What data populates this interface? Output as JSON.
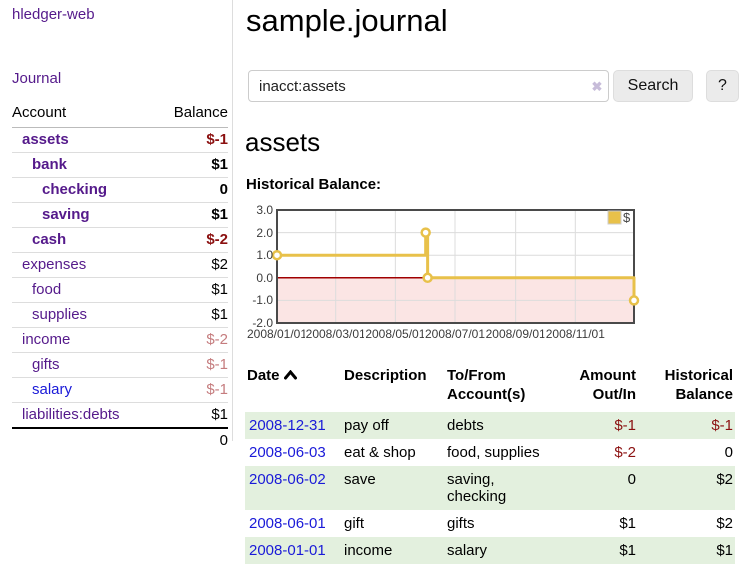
{
  "colors": {
    "link-purple": "#551a8b",
    "link-blue": "#1a1ad8",
    "neg-strong": "#8b1010",
    "neg-soft": "#c57c7e",
    "row-shade": "#e3f0de",
    "chart-line": "#e8c14a",
    "chart-negative-fill": "#fbe5e4",
    "chart-zero-line": "#a00000",
    "chart-grid": "#dcdcdc",
    "chart-border": "#4a4a4a"
  },
  "sidebar": {
    "app_title": "hledger-web",
    "journal_label": "Journal",
    "accounts": {
      "headers": {
        "account": "Account",
        "balance": "Balance"
      },
      "rows": [
        {
          "name": "assets",
          "indent": 1,
          "bold": true,
          "link": "visited",
          "balance": "$-1",
          "tone": "neg"
        },
        {
          "name": "bank",
          "indent": 2,
          "bold": true,
          "link": "visited",
          "balance": "$1",
          "tone": ""
        },
        {
          "name": "checking",
          "indent": 3,
          "bold": true,
          "link": "visited",
          "balance": "0",
          "tone": ""
        },
        {
          "name": "saving",
          "indent": 3,
          "bold": true,
          "link": "visited",
          "balance": "$1",
          "tone": ""
        },
        {
          "name": "cash",
          "indent": 2,
          "bold": true,
          "link": "visited",
          "balance": "$-2",
          "tone": "neg"
        },
        {
          "name": "expenses",
          "indent": 1,
          "bold": false,
          "link": "visited",
          "balance": "$2",
          "tone": ""
        },
        {
          "name": "food",
          "indent": 2,
          "bold": false,
          "link": "visited",
          "balance": "$1",
          "tone": ""
        },
        {
          "name": "supplies",
          "indent": 2,
          "bold": false,
          "link": "visited",
          "balance": "$1",
          "tone": ""
        },
        {
          "name": "income",
          "indent": 1,
          "bold": false,
          "link": "visited",
          "balance": "$-2",
          "tone": "negsoft"
        },
        {
          "name": "gifts",
          "indent": 2,
          "bold": false,
          "link": "visited",
          "balance": "$-1",
          "tone": "negsoft"
        },
        {
          "name": "salary",
          "indent": 2,
          "bold": false,
          "link": "unvisited",
          "balance": "$-1",
          "tone": "negsoft"
        },
        {
          "name": "liabilities:debts",
          "indent": 1,
          "bold": false,
          "link": "visited",
          "balance": "$1",
          "tone": ""
        }
      ],
      "total": "0"
    }
  },
  "main": {
    "title": "sample.journal",
    "search": {
      "value": "inacct:assets",
      "clear_icon": "✖",
      "search_button": "Search",
      "help_button": "?"
    },
    "account_heading": "assets",
    "chart_heading": "Historical Balance:",
    "register": {
      "headers": {
        "date": "Date",
        "description": "Description",
        "accounts": "To/From Account(s)",
        "amount": "Amount Out/In",
        "balance": "Historical Balance"
      },
      "rows": [
        {
          "date": "2008-12-31",
          "description": "pay off",
          "accounts_lines": [
            "debts"
          ],
          "amount": "$-1",
          "amount_neg": true,
          "balance": "$-1",
          "balance_neg": true,
          "shade": true
        },
        {
          "date": "2008-06-03",
          "description": "eat & shop",
          "accounts_lines": [
            "food, supplies"
          ],
          "amount": "$-2",
          "amount_neg": true,
          "balance": "0",
          "balance_neg": false,
          "shade": false
        },
        {
          "date": "2008-06-02",
          "description": "save",
          "accounts_lines": [
            "saving,",
            "checking"
          ],
          "amount": "0",
          "amount_neg": false,
          "balance": "$2",
          "balance_neg": false,
          "shade": true
        },
        {
          "date": "2008-06-01",
          "description": "gift",
          "accounts_lines": [
            "gifts"
          ],
          "amount": "$1",
          "amount_neg": false,
          "balance": "$2",
          "balance_neg": false,
          "shade": false
        },
        {
          "date": "2008-01-01",
          "description": "income",
          "accounts_lines": [
            "salary"
          ],
          "amount": "$1",
          "amount_neg": false,
          "balance": "$1",
          "balance_neg": false,
          "shade": true
        }
      ]
    }
  },
  "chart_data": {
    "type": "line",
    "style": "step",
    "title": "Historical Balance:",
    "legend": [
      {
        "name": "$",
        "color": "#e8c14a"
      }
    ],
    "legend_position": "top-right",
    "grid": true,
    "xlim": [
      "2008-01-01",
      "2008-12-31"
    ],
    "ylim": [
      -2,
      3
    ],
    "series": [
      {
        "name": "$",
        "points": [
          {
            "x": "2008-01-01",
            "y": 1
          },
          {
            "x": "2008-06-01",
            "y": 2
          },
          {
            "x": "2008-06-03",
            "y": 0
          },
          {
            "x": "2008-12-31",
            "y": -1
          }
        ]
      }
    ],
    "x_ticks": [
      {
        "x": "2008-01-01",
        "label": "2008/01/01"
      },
      {
        "x": "2008-03-01",
        "label": "2008/03/01"
      },
      {
        "x": "2008-05-01",
        "label": "2008/05/01"
      },
      {
        "x": "2008-07-01",
        "label": "2008/07/01"
      },
      {
        "x": "2008-09-01",
        "label": "2008/09/01"
      },
      {
        "x": "2008-11-01",
        "label": "2008/11/01"
      }
    ],
    "y_ticks": [
      {
        "v": 3,
        "label": "3.0"
      },
      {
        "v": 2,
        "label": "2.0"
      },
      {
        "v": 1,
        "label": "1.0"
      },
      {
        "v": 0,
        "label": "0.0"
      },
      {
        "v": -1,
        "label": "-1.0"
      },
      {
        "v": -2,
        "label": "-2.0"
      }
    ],
    "negative_region_shaded": true
  }
}
